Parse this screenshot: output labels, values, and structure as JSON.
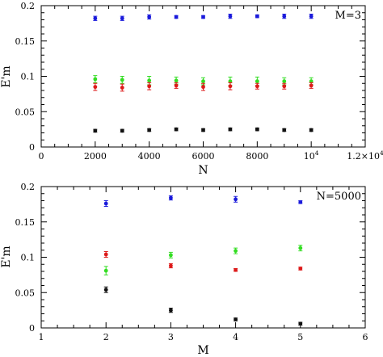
{
  "chart_data": [
    {
      "type": "scatter",
      "annotation": "M=3",
      "xlabel": "N",
      "ylabel": "E'm",
      "xlim": [
        0,
        12000
      ],
      "ylim": [
        0,
        0.2
      ],
      "x_ticks": [
        {
          "value": 0,
          "label": "0"
        },
        {
          "value": 2000,
          "label": "2000"
        },
        {
          "value": 4000,
          "label": "4000"
        },
        {
          "value": 6000,
          "label": "6000"
        },
        {
          "value": 8000,
          "label": "8000"
        },
        {
          "value": 10000,
          "label": "10",
          "sup": "4"
        },
        {
          "value": 12000,
          "label": "1.2×10",
          "sup": "4"
        }
      ],
      "y_ticks": [
        {
          "value": 0,
          "label": "0"
        },
        {
          "value": 0.05,
          "label": "0.05"
        },
        {
          "value": 0.1,
          "label": "0.1"
        },
        {
          "value": 0.15,
          "label": "0.15"
        },
        {
          "value": 0.2,
          "label": "0.2"
        }
      ],
      "series": [
        {
          "color": "#1a1adb",
          "x": [
            2000,
            3000,
            4000,
            5000,
            6000,
            7000,
            8000,
            9000,
            10000
          ],
          "y": [
            0.182,
            0.182,
            0.184,
            0.184,
            0.184,
            0.185,
            0.185,
            0.185,
            0.185
          ],
          "err": [
            0.003,
            0.003,
            0.003,
            0.002,
            0.002,
            0.003,
            0.002,
            0.003,
            0.003
          ]
        },
        {
          "color": "#33dd22",
          "x": [
            2000,
            3000,
            4000,
            5000,
            6000,
            7000,
            8000,
            9000,
            10000
          ],
          "y": [
            0.096,
            0.095,
            0.094,
            0.094,
            0.093,
            0.093,
            0.093,
            0.093,
            0.093
          ],
          "err": [
            0.005,
            0.005,
            0.006,
            0.005,
            0.005,
            0.006,
            0.006,
            0.005,
            0.005
          ]
        },
        {
          "color": "#dd1a1a",
          "x": [
            2000,
            3000,
            4000,
            5000,
            6000,
            7000,
            8000,
            9000,
            10000
          ],
          "y": [
            0.085,
            0.084,
            0.086,
            0.087,
            0.085,
            0.086,
            0.086,
            0.086,
            0.087
          ],
          "err": [
            0.005,
            0.005,
            0.005,
            0.004,
            0.005,
            0.005,
            0.004,
            0.004,
            0.004
          ]
        },
        {
          "color": "#111111",
          "x": [
            2000,
            3000,
            4000,
            5000,
            6000,
            7000,
            8000,
            9000,
            10000
          ],
          "y": [
            0.023,
            0.023,
            0.024,
            0.025,
            0.024,
            0.025,
            0.025,
            0.024,
            0.024
          ],
          "err": [
            0.002,
            0.002,
            0.002,
            0.002,
            0.002,
            0.002,
            0.002,
            0.002,
            0.002
          ]
        }
      ]
    },
    {
      "type": "scatter",
      "annotation": "N=5000",
      "xlabel": "M",
      "ylabel": "E'm",
      "xlim": [
        1,
        6
      ],
      "ylim": [
        0,
        0.2
      ],
      "x_ticks": [
        {
          "value": 1,
          "label": "1"
        },
        {
          "value": 2,
          "label": "2"
        },
        {
          "value": 3,
          "label": "3"
        },
        {
          "value": 4,
          "label": "4"
        },
        {
          "value": 5,
          "label": "5"
        },
        {
          "value": 6,
          "label": "6"
        }
      ],
      "y_ticks": [
        {
          "value": 0,
          "label": "0"
        },
        {
          "value": 0.05,
          "label": "0.05"
        },
        {
          "value": 0.1,
          "label": "0.1"
        },
        {
          "value": 0.15,
          "label": "0.15"
        },
        {
          "value": 0.2,
          "label": "0.2"
        }
      ],
      "series": [
        {
          "color": "#1a1adb",
          "x": [
            2,
            3,
            4,
            5
          ],
          "y": [
            0.176,
            0.184,
            0.182,
            0.178
          ],
          "err": [
            0.004,
            0.003,
            0.004,
            0.002
          ]
        },
        {
          "color": "#33dd22",
          "x": [
            2,
            3,
            4,
            5
          ],
          "y": [
            0.081,
            0.103,
            0.109,
            0.113
          ],
          "err": [
            0.006,
            0.004,
            0.004,
            0.004
          ]
        },
        {
          "color": "#dd1a1a",
          "x": [
            2,
            3,
            4,
            5
          ],
          "y": [
            0.104,
            0.088,
            0.082,
            0.084
          ],
          "err": [
            0.004,
            0.003,
            0.002,
            0.002
          ]
        },
        {
          "color": "#111111",
          "x": [
            2,
            3,
            4,
            5
          ],
          "y": [
            0.054,
            0.025,
            0.012,
            0.006
          ],
          "err": [
            0.004,
            0.003,
            0.002,
            0.002
          ]
        }
      ]
    }
  ]
}
